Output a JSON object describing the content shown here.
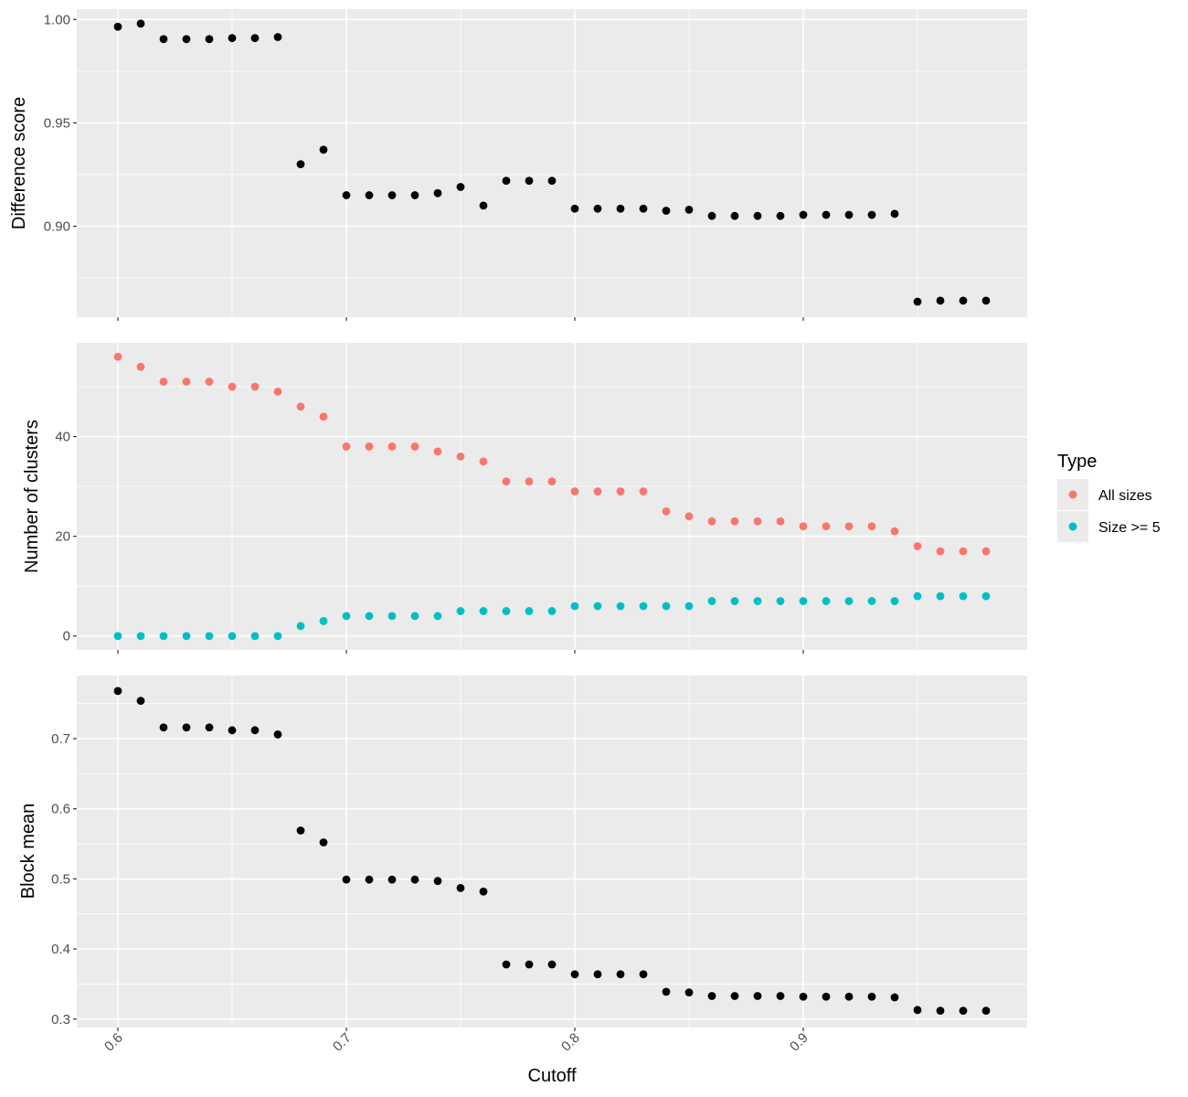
{
  "chart_data": [
    {
      "type": "scatter",
      "ylabel": "Difference score",
      "xlabel": "",
      "xlim": [
        0.582,
        0.998
      ],
      "ylim": [
        0.856,
        1.005
      ],
      "yticks": [
        0.9,
        0.95,
        1.0
      ],
      "ytick_labels": [
        "0.90",
        "0.95",
        "1.00"
      ],
      "series": [
        {
          "color": "#000000",
          "x": [
            0.6,
            0.61,
            0.62,
            0.63,
            0.64,
            0.65,
            0.66,
            0.67,
            0.68,
            0.69,
            0.7,
            0.71,
            0.72,
            0.73,
            0.74,
            0.75,
            0.76,
            0.77,
            0.78,
            0.79,
            0.8,
            0.81,
            0.82,
            0.83,
            0.84,
            0.85,
            0.86,
            0.87,
            0.88,
            0.89,
            0.9,
            0.91,
            0.92,
            0.93,
            0.94,
            0.95,
            0.96,
            0.97,
            0.98
          ],
          "y": [
            0.9965,
            0.998,
            0.9905,
            0.9905,
            0.9905,
            0.991,
            0.991,
            0.9915,
            0.93,
            0.937,
            0.915,
            0.915,
            0.915,
            0.915,
            0.916,
            0.919,
            0.91,
            0.922,
            0.922,
            0.922,
            0.9085,
            0.9085,
            0.9085,
            0.9085,
            0.9075,
            0.908,
            0.905,
            0.905,
            0.905,
            0.905,
            0.9055,
            0.9055,
            0.9055,
            0.9055,
            0.906,
            0.8635,
            0.864,
            0.864,
            0.864
          ]
        }
      ]
    },
    {
      "type": "scatter",
      "ylabel": "Number of clusters",
      "xlabel": "",
      "xlim": [
        0.582,
        0.998
      ],
      "ylim": [
        -2.8,
        58.8
      ],
      "yticks": [
        0,
        20,
        40
      ],
      "ytick_labels": [
        "0",
        "20",
        "40"
      ],
      "legend": {
        "title": "Type",
        "position": "right"
      },
      "series": [
        {
          "name": "All sizes",
          "color": "#F8766D",
          "x": [
            0.6,
            0.61,
            0.62,
            0.63,
            0.64,
            0.65,
            0.66,
            0.67,
            0.68,
            0.69,
            0.7,
            0.71,
            0.72,
            0.73,
            0.74,
            0.75,
            0.76,
            0.77,
            0.78,
            0.79,
            0.8,
            0.81,
            0.82,
            0.83,
            0.84,
            0.85,
            0.86,
            0.87,
            0.88,
            0.89,
            0.9,
            0.91,
            0.92,
            0.93,
            0.94,
            0.95,
            0.96,
            0.97,
            0.98
          ],
          "y": [
            56,
            54,
            51,
            51,
            51,
            50,
            50,
            49,
            46,
            44,
            38,
            38,
            38,
            38,
            37,
            36,
            35,
            31,
            31,
            31,
            29,
            29,
            29,
            29,
            25,
            24,
            23,
            23,
            23,
            23,
            22,
            22,
            22,
            22,
            21,
            18,
            17,
            17,
            17
          ]
        },
        {
          "name": "Size >= 5",
          "color": "#00BFC4",
          "x": [
            0.6,
            0.61,
            0.62,
            0.63,
            0.64,
            0.65,
            0.66,
            0.67,
            0.68,
            0.69,
            0.7,
            0.71,
            0.72,
            0.73,
            0.74,
            0.75,
            0.76,
            0.77,
            0.78,
            0.79,
            0.8,
            0.81,
            0.82,
            0.83,
            0.84,
            0.85,
            0.86,
            0.87,
            0.88,
            0.89,
            0.9,
            0.91,
            0.92,
            0.93,
            0.94,
            0.95,
            0.96,
            0.97,
            0.98
          ],
          "y": [
            0,
            0,
            0,
            0,
            0,
            0,
            0,
            0,
            2,
            3,
            4,
            4,
            4,
            4,
            4,
            5,
            5,
            5,
            5,
            5,
            6,
            6,
            6,
            6,
            6,
            6,
            7,
            7,
            7,
            7,
            7,
            7,
            7,
            7,
            7,
            8,
            8,
            8,
            8
          ]
        }
      ]
    },
    {
      "type": "scatter",
      "ylabel": "Block mean",
      "xlabel": "Cutoff",
      "xlim": [
        0.582,
        0.998
      ],
      "ylim": [
        0.288,
        0.79
      ],
      "yticks": [
        0.3,
        0.4,
        0.5,
        0.6,
        0.7
      ],
      "ytick_labels": [
        "0.3",
        "0.4",
        "0.5",
        "0.6",
        "0.7"
      ],
      "xticks": [
        0.6,
        0.7,
        0.8,
        0.9
      ],
      "xtick_labels": [
        "0.6",
        "0.7",
        "0.8",
        "0.9"
      ],
      "series": [
        {
          "color": "#000000",
          "x": [
            0.6,
            0.61,
            0.62,
            0.63,
            0.64,
            0.65,
            0.66,
            0.67,
            0.68,
            0.69,
            0.7,
            0.71,
            0.72,
            0.73,
            0.74,
            0.75,
            0.76,
            0.77,
            0.78,
            0.79,
            0.8,
            0.81,
            0.82,
            0.83,
            0.84,
            0.85,
            0.86,
            0.87,
            0.88,
            0.89,
            0.9,
            0.91,
            0.92,
            0.93,
            0.94,
            0.95,
            0.96,
            0.97,
            0.98
          ],
          "y": [
            0.768,
            0.754,
            0.716,
            0.716,
            0.716,
            0.712,
            0.712,
            0.706,
            0.569,
            0.552,
            0.499,
            0.499,
            0.499,
            0.499,
            0.497,
            0.487,
            0.482,
            0.378,
            0.378,
            0.378,
            0.364,
            0.364,
            0.364,
            0.364,
            0.339,
            0.338,
            0.333,
            0.333,
            0.333,
            0.333,
            0.332,
            0.332,
            0.332,
            0.332,
            0.331,
            0.313,
            0.312,
            0.312,
            0.312
          ]
        }
      ]
    }
  ]
}
